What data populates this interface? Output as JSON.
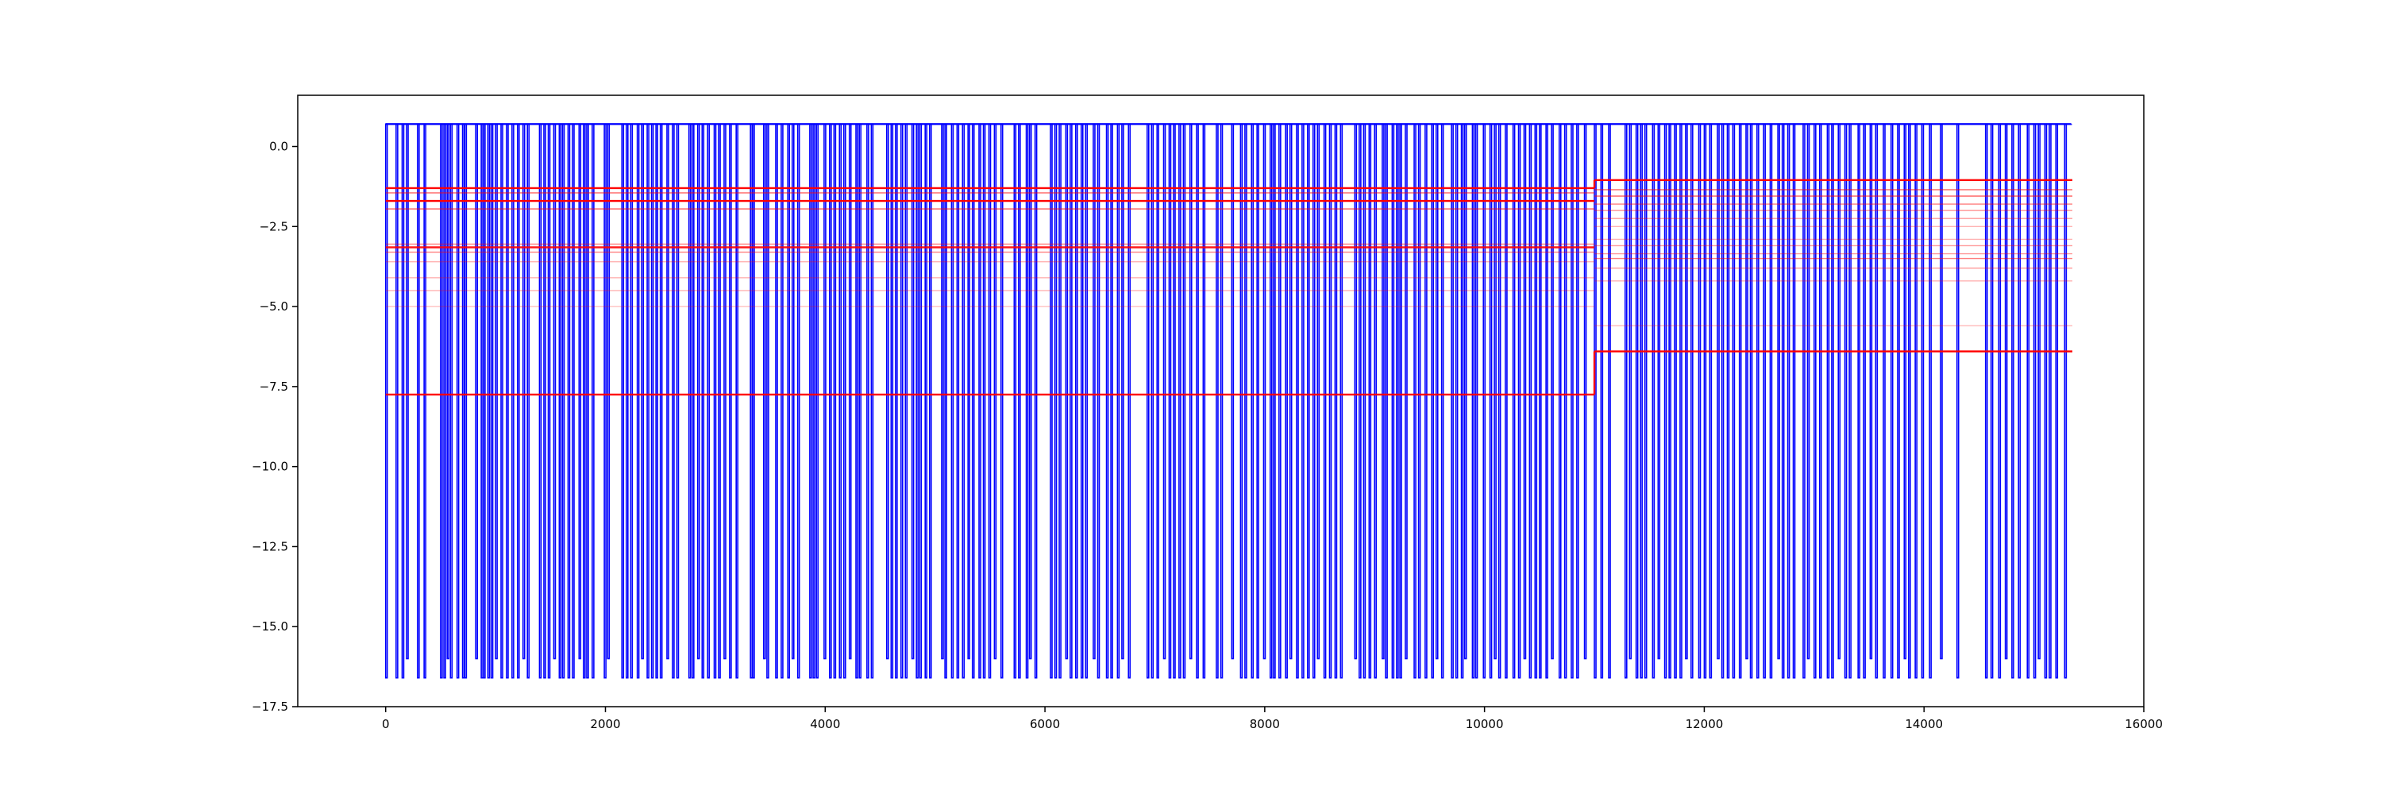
{
  "chart_data": {
    "type": "line",
    "title": "",
    "xlabel": "",
    "ylabel": "",
    "xlim": [
      -800,
      16000
    ],
    "ylim": [
      -17.5,
      1.6
    ],
    "grid": false,
    "legend": "none",
    "x_ticks": [
      0,
      2000,
      4000,
      6000,
      8000,
      10000,
      12000,
      14000,
      16000
    ],
    "x_tick_labels": [
      "0",
      "2000",
      "4000",
      "6000",
      "8000",
      "10000",
      "12000",
      "14000",
      "16000"
    ],
    "y_ticks": [
      0.0,
      -2.5,
      -5.0,
      -7.5,
      -10.0,
      -12.5,
      -15.0,
      -17.5
    ],
    "y_tick_labels": [
      "0.0",
      "−2.5",
      "−5.0",
      "−7.5",
      "−10.0",
      "−12.5",
      "−15.0",
      "−17.5"
    ],
    "colors": {
      "primary": "#0000ff",
      "secondary": "#ff0000",
      "secondary_faint": "#ff8080"
    },
    "series": [
      {
        "color": "#0000ff",
        "style": "step",
        "baseline": 0.7,
        "dip_levels": [
          -16.6,
          -16.0
        ],
        "dip_x": [
          0,
          95,
          150,
          190,
          290,
          350,
          500,
          530,
          560,
          590,
          650,
          700,
          720,
          820,
          870,
          890,
          930,
          960,
          1000,
          1050,
          1100,
          1150,
          1200,
          1250,
          1290,
          1400,
          1440,
          1480,
          1530,
          1580,
          1610,
          1660,
          1700,
          1760,
          1800,
          1830,
          1880,
          1990,
          2020,
          2150,
          2190,
          2230,
          2290,
          2330,
          2380,
          2420,
          2460,
          2500,
          2560,
          2610,
          2650,
          2760,
          2790,
          2840,
          2880,
          2930,
          2990,
          3030,
          3080,
          3130,
          3190,
          3320,
          3340,
          3440,
          3470,
          3550,
          3600,
          3660,
          3700,
          3750,
          3860,
          3890,
          3920,
          3990,
          4040,
          4080,
          4130,
          4170,
          4220,
          4280,
          4310,
          4380,
          4420,
          4560,
          4600,
          4640,
          4690,
          4730,
          4790,
          4830,
          4860,
          4910,
          4950,
          5060,
          5090,
          5150,
          5200,
          5250,
          5300,
          5340,
          5400,
          5440,
          5490,
          5540,
          5600,
          5720,
          5760,
          5830,
          5860,
          5910,
          6050,
          6090,
          6130,
          6190,
          6230,
          6280,
          6330,
          6370,
          6440,
          6480,
          6560,
          6600,
          6660,
          6700,
          6760,
          6930,
          6970,
          7020,
          7080,
          7130,
          7170,
          7220,
          7260,
          7320,
          7380,
          7440,
          7560,
          7600,
          7700,
          7780,
          7820,
          7880,
          7930,
          7990,
          8050,
          8080,
          8130,
          8190,
          8230,
          8290,
          8340,
          8390,
          8440,
          8480,
          8540,
          8590,
          8640,
          8690,
          8820,
          8860,
          8900,
          8950,
          9000,
          9070,
          9100,
          9160,
          9200,
          9230,
          9280,
          9360,
          9400,
          9460,
          9520,
          9560,
          9610,
          9700,
          9740,
          9790,
          9820,
          9890,
          9920,
          9990,
          10050,
          10090,
          10130,
          10190,
          10260,
          10310,
          10360,
          10410,
          10460,
          10500,
          10560,
          10610,
          10680,
          10730,
          10790,
          10840,
          10910,
          11000,
          11060,
          11130,
          11280,
          11320,
          11380,
          11420,
          11460,
          11530,
          11580,
          11640,
          11680,
          11730,
          11780,
          11830,
          11880,
          11950,
          12000,
          12050,
          12120,
          12160,
          12210,
          12260,
          12320,
          12380,
          12420,
          12480,
          12540,
          12600,
          12670,
          12710,
          12760,
          12810,
          12900,
          12940,
          13000,
          13050,
          13120,
          13160,
          13220,
          13280,
          13320,
          13400,
          13450,
          13510,
          13560,
          13630,
          13700,
          13760,
          13820,
          13860,
          13920,
          13980,
          14050,
          14150,
          14300,
          14560,
          14610,
          14680,
          14740,
          14800,
          14860,
          14940,
          15000,
          15040,
          15100,
          15140,
          15200,
          15280
        ]
      },
      {
        "color": "#ff0000",
        "style": "step-horizontal",
        "segments": [
          {
            "x": [
              0,
              11000
            ],
            "y": -1.3,
            "alpha": 1.0
          },
          {
            "x": [
              0,
              11000
            ],
            "y": -1.45,
            "alpha": 0.6
          },
          {
            "x": [
              0,
              11000
            ],
            "y": -1.7,
            "alpha": 1.0
          },
          {
            "x": [
              0,
              11000
            ],
            "y": -1.95,
            "alpha": 0.6
          },
          {
            "x": [
              0,
              11000
            ],
            "y": -3.05,
            "alpha": 0.5
          },
          {
            "x": [
              0,
              11000
            ],
            "y": -3.15,
            "alpha": 0.9
          },
          {
            "x": [
              0,
              11000
            ],
            "y": -3.3,
            "alpha": 0.5
          },
          {
            "x": [
              0,
              11000
            ],
            "y": -3.6,
            "alpha": 0.3
          },
          {
            "x": [
              0,
              11000
            ],
            "y": -4.1,
            "alpha": 0.3
          },
          {
            "x": [
              0,
              11000
            ],
            "y": -4.5,
            "alpha": 0.3
          },
          {
            "x": [
              0,
              11000
            ],
            "y": -5.0,
            "alpha": 0.25
          },
          {
            "x": [
              0,
              11000
            ],
            "y": -7.75,
            "alpha": 1.0
          },
          {
            "x": [
              11000,
              15350
            ],
            "y": -1.05,
            "alpha": 1.0
          },
          {
            "x": [
              11000,
              15350
            ],
            "y": -1.35,
            "alpha": 0.6
          },
          {
            "x": [
              11000,
              15350
            ],
            "y": -1.55,
            "alpha": 0.6
          },
          {
            "x": [
              11000,
              15350
            ],
            "y": -1.8,
            "alpha": 0.5
          },
          {
            "x": [
              11000,
              15350
            ],
            "y": -2.0,
            "alpha": 0.4
          },
          {
            "x": [
              11000,
              15350
            ],
            "y": -2.25,
            "alpha": 0.4
          },
          {
            "x": [
              11000,
              15350
            ],
            "y": -2.5,
            "alpha": 0.3
          },
          {
            "x": [
              11000,
              15350
            ],
            "y": -2.9,
            "alpha": 0.3
          },
          {
            "x": [
              11000,
              15350
            ],
            "y": -3.1,
            "alpha": 0.4
          },
          {
            "x": [
              11000,
              15350
            ],
            "y": -3.35,
            "alpha": 0.4
          },
          {
            "x": [
              11000,
              15350
            ],
            "y": -3.5,
            "alpha": 0.5
          },
          {
            "x": [
              11000,
              15350
            ],
            "y": -3.8,
            "alpha": 0.4
          },
          {
            "x": [
              11000,
              15350
            ],
            "y": -4.2,
            "alpha": 0.3
          },
          {
            "x": [
              11000,
              15350
            ],
            "y": -5.6,
            "alpha": 0.25
          },
          {
            "x": [
              11000,
              15350
            ],
            "y": -6.4,
            "alpha": 1.0
          }
        ]
      }
    ]
  }
}
